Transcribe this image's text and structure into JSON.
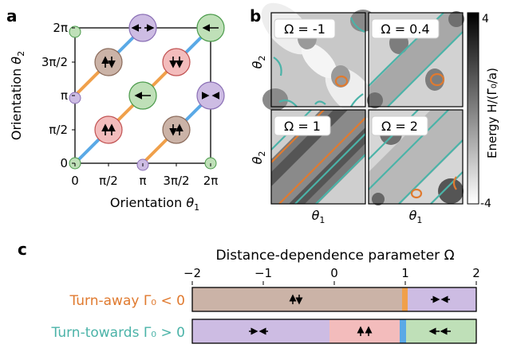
{
  "panel_a": {
    "label": "a",
    "ylabel_text": "Orientation ",
    "ylabel_sym": "θ",
    "ylabel_sub": "2",
    "xlabel_text": "Orientation ",
    "xlabel_sym": "θ",
    "xlabel_sub": "1",
    "yticks": [
      "2π",
      "3π/2",
      "π",
      "π/2",
      "0"
    ],
    "xticks": [
      "0",
      "π/2",
      "π",
      "3π/2",
      "2π"
    ],
    "colors": {
      "orange": "#f0a04b",
      "blue": "#5aa9e6",
      "purple": "#cdbce3",
      "green": "#bfe0b8",
      "red": "#f3bcbc",
      "brown": "#cbb3a7"
    }
  },
  "panel_b": {
    "label": "b",
    "ylabel_sym": "θ",
    "ylabel_sub": "2",
    "xlabel_sym": "θ",
    "xlabel_sub": "1",
    "titles": [
      "Ω = -1",
      "Ω = 0.4",
      "Ω = 1",
      "Ω = 2"
    ],
    "colorbar_max": "4",
    "colorbar_min": "-4",
    "colorbar_label": "Energy H/(Γ̃₀/a)"
  },
  "panel_c": {
    "label": "c",
    "title": "Distance-dependence parameter Ω",
    "ticks": [
      "−2",
      "−1",
      "0",
      "1",
      "2"
    ],
    "row1_label": "Turn-away Γ₀ < 0",
    "row2_label": "Turn-towards Γ₀ > 0",
    "colors": {
      "turn_away": "#e07a2f",
      "turn_towards": "#4bb3a8"
    }
  }
}
